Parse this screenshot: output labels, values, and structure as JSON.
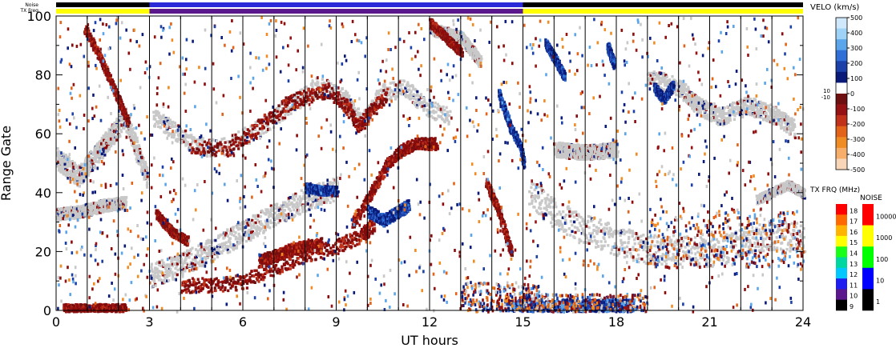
{
  "chart_data": {
    "type": "heatmap",
    "xlabel": "UT hours",
    "ylabel": "Range Gate",
    "xlim": [
      0,
      24
    ],
    "ylim": [
      0,
      100
    ],
    "x_ticks": [
      "0",
      "3",
      "6",
      "9",
      "12",
      "15",
      "18",
      "21",
      "24"
    ],
    "y_ticks": [
      "0",
      "20",
      "40",
      "60",
      "80",
      "100"
    ],
    "x_tick_values": [
      0,
      3,
      6,
      9,
      12,
      15,
      18,
      21,
      24
    ],
    "y_tick_values": [
      0,
      20,
      40,
      60,
      80,
      100
    ],
    "minor_vertical_lines_hours": [
      1,
      2,
      3,
      4,
      5,
      6,
      7,
      8,
      9,
      10,
      11,
      12,
      13,
      14,
      15,
      16,
      17,
      18,
      19,
      20,
      21,
      22,
      23
    ],
    "status_bars": {
      "noise_label": "Noise",
      "txfreq_label": "TX Freq",
      "txfreq_segments": [
        {
          "start": 0,
          "end": 3,
          "color": "#ffff00"
        },
        {
          "start": 3,
          "end": 15,
          "color": "#5a188c"
        },
        {
          "start": 15,
          "end": 24,
          "color": "#ffff00"
        }
      ],
      "noise_segments": [
        {
          "start": 0,
          "end": 3,
          "color": "#000000"
        },
        {
          "start": 3,
          "end": 15,
          "color": "#2a2ad8"
        },
        {
          "start": 15,
          "end": 24,
          "color": "#000000"
        }
      ]
    },
    "velocity_scale": {
      "title": "VELO (km/s)",
      "ticks": [
        "500",
        "400",
        "300",
        "200",
        "100",
        "0",
        "-100",
        "-200",
        "-300",
        "-400",
        "-500"
      ],
      "tick_values": [
        500,
        400,
        300,
        200,
        100,
        0,
        -100,
        -200,
        -300,
        -400,
        -500
      ],
      "side_ticks": [
        "10",
        "-10"
      ],
      "colors_top_to_bottom": [
        "#cfe8fb",
        "#9ed2f6",
        "#5ba6ea",
        "#2f6fd6",
        "#1b40a8",
        "#0a1a78",
        "#ffffff",
        "#6e0f10",
        "#961313",
        "#c0321a",
        "#e2641b",
        "#f08c24",
        "#f6ae6a",
        "#fad6b8"
      ]
    },
    "txfreq_scale": {
      "title": "TX FRQ (MHz)",
      "ticks": [
        "18",
        "17",
        "16",
        "15",
        "14",
        "13",
        "12",
        "11",
        "10",
        "9"
      ],
      "colors_top_to_bottom": [
        "#ff0000",
        "#ff6a00",
        "#ffb400",
        "#ffff00",
        "#19ff19",
        "#00d7a0",
        "#00c8ff",
        "#1e1ef0",
        "#5a188c",
        "#000000"
      ]
    },
    "noise_scale": {
      "title": "NOISE",
      "ticks": [
        "10000",
        "1000",
        "100",
        "10",
        "1"
      ],
      "colors_top_to_bottom": [
        "#ff0000",
        "#ffff00",
        "#00ff00",
        "#0000ff",
        "#000000"
      ]
    },
    "ground_scatter_color": "#c8c8c8",
    "features": [
      {
        "name": "ground scatter early",
        "kind": "ground",
        "pts": [
          [
            0,
            52
          ],
          [
            0.7,
            46
          ],
          [
            1.4,
            55
          ],
          [
            2.2,
            66
          ],
          [
            2.9,
            45
          ]
        ],
        "w": 7
      },
      {
        "name": "ground scatter band 30",
        "kind": "ground",
        "pts": [
          [
            0,
            33
          ],
          [
            0.8,
            34
          ],
          [
            1.5,
            36
          ],
          [
            2.2,
            37
          ]
        ],
        "w": 4
      },
      {
        "name": "ground scatter rising",
        "kind": "ground",
        "pts": [
          [
            3,
            12
          ],
          [
            4,
            16
          ],
          [
            5,
            21
          ],
          [
            6,
            27
          ],
          [
            7,
            33
          ],
          [
            8,
            38
          ],
          [
            9,
            42
          ]
        ],
        "w": 8
      },
      {
        "name": "ground scatter arc 60-75",
        "kind": "ground",
        "pts": [
          [
            3.1,
            66
          ],
          [
            3.7,
            62
          ],
          [
            4.3,
            57
          ],
          [
            5.2,
            55
          ],
          [
            6.5,
            62
          ],
          [
            7.5,
            70
          ],
          [
            8.4,
            77
          ],
          [
            9.2,
            73
          ],
          [
            9.8,
            64
          ],
          [
            10.4,
            74
          ],
          [
            11.2,
            76
          ],
          [
            11.8,
            70
          ],
          [
            12.6,
            66
          ]
        ],
        "w": 6
      },
      {
        "name": "ground scatter afternoon 95",
        "kind": "ground",
        "pts": [
          [
            12,
            96
          ],
          [
            13,
            93
          ],
          [
            13.6,
            85
          ]
        ],
        "w": 4
      },
      {
        "name": "ground scatter evening band",
        "kind": "ground",
        "pts": [
          [
            15.2,
            40
          ],
          [
            16,
            33
          ],
          [
            17,
            28
          ],
          [
            18,
            24
          ],
          [
            19,
            21
          ],
          [
            20,
            21
          ],
          [
            21,
            20
          ],
          [
            22,
            23
          ],
          [
            23,
            26
          ],
          [
            24,
            25
          ]
        ],
        "w": 10
      },
      {
        "name": "ground scatter evening upper",
        "kind": "ground",
        "pts": [
          [
            16,
            55
          ],
          [
            17,
            54
          ],
          [
            18,
            55
          ]
        ],
        "w": 5
      },
      {
        "name": "ground scatter night 60-80",
        "kind": "ground",
        "pts": [
          [
            19,
            80
          ],
          [
            20,
            76
          ],
          [
            20.6,
            70
          ],
          [
            21.3,
            66
          ],
          [
            22.2,
            70
          ],
          [
            23,
            67
          ],
          [
            23.7,
            62
          ]
        ],
        "w": 6
      },
      {
        "name": "ground scatter late 40",
        "kind": "ground",
        "pts": [
          [
            22.5,
            38
          ],
          [
            23.5,
            43
          ],
          [
            24,
            40
          ]
        ],
        "w": 3
      },
      {
        "name": "negative velocity layer low",
        "kind": "neg",
        "pts": [
          [
            4,
            9
          ],
          [
            5,
            9
          ],
          [
            6,
            10
          ],
          [
            7,
            15
          ],
          [
            8,
            19
          ],
          [
            9,
            22
          ],
          [
            9.8,
            26
          ],
          [
            10.2,
            30
          ]
        ],
        "w": 5
      },
      {
        "name": "negative velocity layer 25",
        "kind": "neg",
        "pts": [
          [
            6.5,
            17
          ],
          [
            7.5,
            21
          ],
          [
            8.5,
            23
          ]
        ],
        "w": 4
      },
      {
        "name": "negative velocity steep rise",
        "kind": "neg",
        "pts": [
          [
            9.5,
            30
          ],
          [
            10.1,
            40
          ],
          [
            10.6,
            50
          ],
          [
            11.1,
            55
          ],
          [
            11.6,
            57
          ],
          [
            12.2,
            57
          ]
        ],
        "w": 4
      },
      {
        "name": "negative velocity 55-75",
        "kind": "neg",
        "pts": [
          [
            4.3,
            56
          ],
          [
            5.5,
            55
          ],
          [
            6.4,
            62
          ],
          [
            7.3,
            70
          ],
          [
            8,
            73
          ],
          [
            8.7,
            75
          ],
          [
            9.3,
            70
          ],
          [
            9.7,
            63
          ],
          [
            10.1,
            68
          ],
          [
            10.6,
            74
          ]
        ],
        "w": 5
      },
      {
        "name": "negative velocity early 90",
        "kind": "neg",
        "pts": [
          [
            0.9,
            96
          ],
          [
            1.4,
            86
          ],
          [
            1.9,
            74
          ],
          [
            2.3,
            64
          ]
        ],
        "w": 3
      },
      {
        "name": "negative velocity early 25",
        "kind": "neg",
        "pts": [
          [
            3.2,
            33
          ],
          [
            3.7,
            27
          ],
          [
            4.2,
            24
          ]
        ],
        "w": 3
      },
      {
        "name": "negative velocity 12h 90",
        "kind": "neg",
        "pts": [
          [
            12,
            98
          ],
          [
            12.5,
            93
          ],
          [
            13,
            88
          ]
        ],
        "w": 3
      },
      {
        "name": "negative velocity 14-15",
        "kind": "neg",
        "pts": [
          [
            13.8,
            44
          ],
          [
            14.2,
            34
          ],
          [
            14.6,
            20
          ]
        ],
        "w": 3
      },
      {
        "name": "positive velocity 35",
        "kind": "pos",
        "pts": [
          [
            10,
            34
          ],
          [
            10.5,
            31
          ],
          [
            11,
            34
          ],
          [
            11.3,
            36
          ]
        ],
        "w": 4
      },
      {
        "name": "positive velocity 40",
        "kind": "pos",
        "pts": [
          [
            8,
            42
          ],
          [
            8.5,
            41
          ],
          [
            9,
            41
          ]
        ],
        "w": 3
      },
      {
        "name": "positive velocity plume 14-15",
        "kind": "pos",
        "pts": [
          [
            14.2,
            74
          ],
          [
            14.4,
            68
          ],
          [
            14.6,
            62
          ],
          [
            14.9,
            56
          ],
          [
            15,
            50
          ]
        ],
        "w": 3
      },
      {
        "name": "positive velocity 16 85",
        "kind": "pos",
        "pts": [
          [
            15.7,
            91
          ],
          [
            16,
            86
          ],
          [
            16.3,
            80
          ]
        ],
        "w": 3
      },
      {
        "name": "positive velocity 17 85",
        "kind": "pos",
        "pts": [
          [
            17.7,
            90
          ],
          [
            17.9,
            84
          ]
        ],
        "w": 3
      },
      {
        "name": "positive velocity 19 75",
        "kind": "pos",
        "pts": [
          [
            19.2,
            76
          ],
          [
            19.5,
            72
          ],
          [
            19.8,
            77
          ]
        ],
        "w": 3
      },
      {
        "name": "positive velocity band 0",
        "kind": "pos",
        "pts": [
          [
            14.5,
            2
          ],
          [
            16,
            2
          ],
          [
            17.5,
            2
          ],
          [
            18.5,
            2
          ]
        ],
        "w": 4
      },
      {
        "name": "negative velocity near 0 morning",
        "kind": "neg",
        "pts": [
          [
            0.2,
            1
          ],
          [
            1.2,
            1
          ],
          [
            2.2,
            1
          ]
        ],
        "w": 3
      }
    ],
    "scatter_regions": [
      {
        "x": [
          0,
          3
        ],
        "y": [
          0,
          100
        ],
        "n": 260
      },
      {
        "x": [
          3,
          15
        ],
        "y": [
          0,
          100
        ],
        "n": 700
      },
      {
        "x": [
          15,
          24
        ],
        "y": [
          0,
          100
        ],
        "n": 520
      },
      {
        "x": [
          13,
          15.5
        ],
        "y": [
          0,
          10
        ],
        "n": 250
      },
      {
        "x": [
          15,
          19
        ],
        "y": [
          0,
          6
        ],
        "n": 300
      },
      {
        "x": [
          19,
          24
        ],
        "y": [
          15,
          35
        ],
        "n": 350
      }
    ]
  }
}
